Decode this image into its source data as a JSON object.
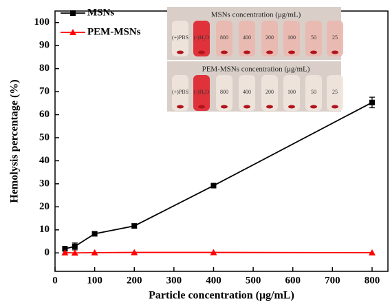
{
  "chart_data": {
    "type": "line",
    "xlabel": "Particle concentration (μg/mL)",
    "ylabel": "Hemolysis percentage (%)",
    "xlim": [
      0,
      840
    ],
    "xticks": [
      0,
      100,
      200,
      300,
      400,
      500,
      600,
      700,
      800
    ],
    "ylim": [
      -8,
      105
    ],
    "yticks": [
      0,
      10,
      20,
      30,
      40,
      50,
      60,
      70,
      80,
      90,
      100
    ],
    "grid": false,
    "x": [
      25,
      50,
      100,
      200,
      400,
      800
    ],
    "series": [
      {
        "name": "MSNs",
        "color": "#000000",
        "marker": "square",
        "values": [
          1.8,
          2.8,
          8.3,
          11.7,
          29.2,
          65.3
        ],
        "errors": [
          1.0,
          1.5,
          0.8,
          0.9,
          0.5,
          2.3
        ]
      },
      {
        "name": "PEM-MSNs",
        "color": "#ff0000",
        "marker": "triangle",
        "values": [
          0.1,
          0.0,
          0.1,
          0.2,
          0.2,
          0.1
        ]
      }
    ],
    "inset": {
      "titles": [
        "MSNs concentration (μg/mL)",
        "PEM-MSNs concentration (μg/mL)"
      ],
      "tube_labels": [
        "(+)PBS",
        "(-)H₂O",
        "800",
        "400",
        "200",
        "100",
        "50",
        "25"
      ]
    }
  }
}
